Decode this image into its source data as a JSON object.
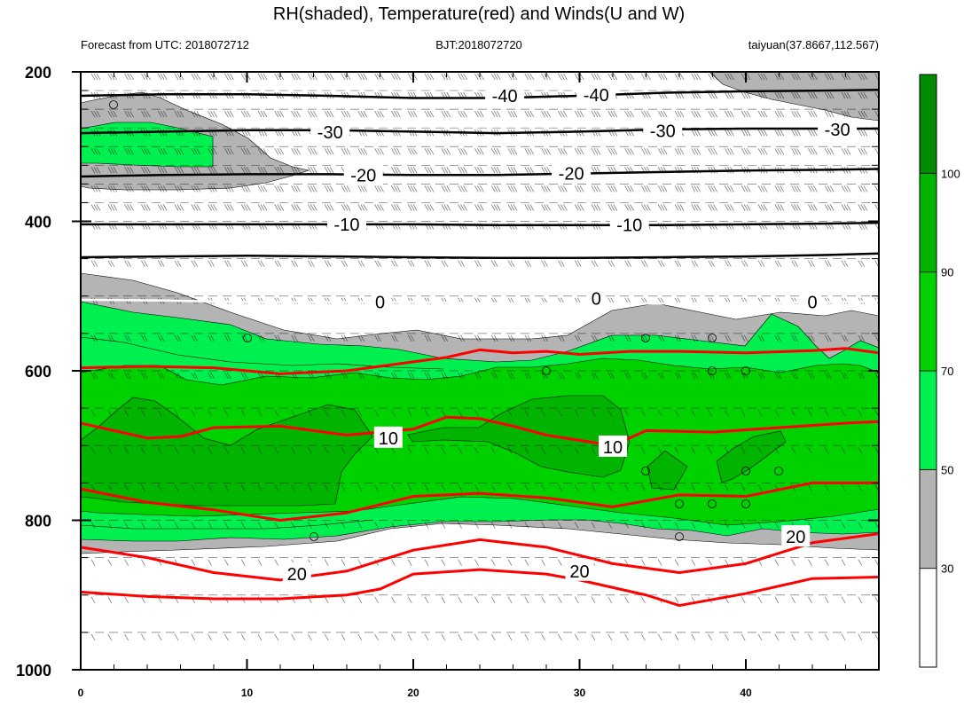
{
  "header": {
    "title": "RH(shaded), Temperature(red) and Winds(U and W)",
    "left": "Forecast from UTC: 2018072712",
    "center": "BJT:2018072720",
    "right": "taiyuan(37.8667,112.567)"
  },
  "chart_data": {
    "type": "time-pressure cross section (filled contour + line contours + wind barbs)",
    "title": "RH(shaded), Temperature(red) and Winds(U and W)",
    "x": {
      "range": [
        0,
        48
      ],
      "ticks": [
        0,
        10,
        20,
        30,
        40
      ],
      "tick_labels": [
        "0",
        "10",
        "20",
        "30",
        "40"
      ]
    },
    "y": {
      "range": [
        1000,
        200
      ],
      "ticks": [
        200,
        400,
        600,
        800,
        1000
      ],
      "tick_labels": [
        "200",
        "400",
        "600",
        "800",
        "1000"
      ],
      "levels": [
        200,
        225,
        250,
        275,
        300,
        325,
        350,
        375,
        400,
        450,
        500,
        550,
        600,
        650,
        700,
        750,
        800,
        850,
        900,
        950,
        1000
      ]
    },
    "colorbar": {
      "levels": [
        "30",
        "50",
        "70",
        "90",
        "100"
      ],
      "colors": [
        "#ffffff",
        "#b4b4b4",
        "#00f050",
        "#00d200",
        "#00b400",
        "#008c00"
      ]
    },
    "temperature_contours": {
      "color_warm": "#ff0000",
      "color_cold": "#000000",
      "labels": [
        "-40",
        "-30",
        "-20",
        "-10",
        "0",
        "10",
        "20"
      ],
      "lines": [
        {
          "label": "-40",
          "color": "black",
          "points": [
            [
              0,
              232
            ],
            [
              5,
              230
            ],
            [
              10,
              230
            ],
            [
              15,
              232
            ],
            [
              20,
              235
            ],
            [
              25,
              235
            ],
            [
              30,
              232
            ],
            [
              35,
              228
            ],
            [
              40,
              226
            ],
            [
              45,
              225
            ],
            [
              48,
              224
            ]
          ]
        },
        {
          "label": "-30",
          "color": "black",
          "points": [
            [
              0,
              282
            ],
            [
              5,
              280
            ],
            [
              10,
              278
            ],
            [
              15,
              278
            ],
            [
              20,
              280
            ],
            [
              25,
              282
            ],
            [
              30,
              280
            ],
            [
              35,
              277
            ],
            [
              40,
              276
            ],
            [
              45,
              276
            ],
            [
              48,
              276
            ]
          ]
        },
        {
          "label": "-20",
          "color": "black",
          "points": [
            [
              0,
              340
            ],
            [
              5,
              338
            ],
            [
              10,
              337
            ],
            [
              15,
              337
            ],
            [
              20,
              338
            ],
            [
              25,
              338
            ],
            [
              30,
              336
            ],
            [
              35,
              334
            ],
            [
              40,
              332
            ],
            [
              45,
              331
            ],
            [
              48,
              330
            ]
          ]
        },
        {
          "label": "-10",
          "color": "black",
          "points": [
            [
              0,
              404
            ],
            [
              5,
              404
            ],
            [
              10,
              404
            ],
            [
              15,
              404
            ],
            [
              20,
              404
            ],
            [
              25,
              405
            ],
            [
              30,
              405
            ],
            [
              35,
              405
            ],
            [
              40,
              404
            ],
            [
              45,
              403
            ],
            [
              48,
              402
            ]
          ]
        },
        {
          "label": "",
          "color": "black",
          "points": [
            [
              0,
              448
            ],
            [
              5,
              447
            ],
            [
              10,
              446
            ],
            [
              15,
              447
            ],
            [
              20,
              448
            ],
            [
              25,
              449
            ],
            [
              30,
              449
            ],
            [
              35,
              448
            ],
            [
              40,
              447
            ],
            [
              45,
              445
            ],
            [
              48,
              443
            ]
          ]
        },
        {
          "label": "0",
          "color": "white",
          "points": [
            [
              0,
              505
            ],
            [
              5,
              506
            ],
            [
              10,
              508
            ],
            [
              15,
              508
            ],
            [
              20,
              508
            ],
            [
              25,
              510
            ],
            [
              30,
              510
            ],
            [
              35,
              510
            ],
            [
              40,
              509
            ],
            [
              45,
              508
            ],
            [
              48,
              507
            ]
          ]
        },
        {
          "label": "",
          "color": "red",
          "points": [
            [
              0,
              596
            ],
            [
              4,
              594
            ],
            [
              8,
              596
            ],
            [
              12,
              604
            ],
            [
              16,
              600
            ],
            [
              20,
              588
            ],
            [
              22,
              582
            ],
            [
              24,
              572
            ],
            [
              26,
              576
            ],
            [
              28,
              574
            ],
            [
              30,
              578
            ],
            [
              33,
              574
            ],
            [
              36,
              574
            ],
            [
              40,
              576
            ],
            [
              44,
              573
            ],
            [
              46,
              570
            ],
            [
              48,
              576
            ]
          ]
        },
        {
          "label": "10",
          "color": "red",
          "points": [
            [
              0,
              670
            ],
            [
              2,
              680
            ],
            [
              4,
              690
            ],
            [
              6,
              688
            ],
            [
              8,
              676
            ],
            [
              12,
              674
            ],
            [
              16,
              686
            ],
            [
              20,
              678
            ],
            [
              22,
              662
            ],
            [
              24,
              664
            ],
            [
              26,
              674
            ],
            [
              28,
              686
            ],
            [
              32,
              700
            ],
            [
              34,
              680
            ],
            [
              38,
              682
            ],
            [
              42,
              676
            ],
            [
              46,
              670
            ],
            [
              48,
              668
            ]
          ]
        },
        {
          "label": "",
          "color": "red",
          "points": [
            [
              0,
              758
            ],
            [
              4,
              776
            ],
            [
              8,
              786
            ],
            [
              12,
              800
            ],
            [
              16,
              790
            ],
            [
              20,
              768
            ],
            [
              24,
              764
            ],
            [
              28,
              770
            ],
            [
              32,
              782
            ],
            [
              36,
              766
            ],
            [
              40,
              768
            ],
            [
              44,
              750
            ],
            [
              48,
              750
            ]
          ]
        },
        {
          "label": "20",
          "color": "red",
          "points": [
            [
              0,
              836
            ],
            [
              4,
              850
            ],
            [
              8,
              870
            ],
            [
              12,
              880
            ],
            [
              16,
              868
            ],
            [
              20,
              840
            ],
            [
              24,
              826
            ],
            [
              28,
              836
            ],
            [
              32,
              858
            ],
            [
              36,
              870
            ],
            [
              40,
              858
            ],
            [
              44,
              830
            ],
            [
              48,
              818
            ]
          ]
        },
        {
          "label": "",
          "color": "red",
          "points": [
            [
              0,
              896
            ],
            [
              4,
              902
            ],
            [
              8,
              905
            ],
            [
              12,
              905
            ],
            [
              16,
              900
            ],
            [
              18,
              892
            ],
            [
              20,
              872
            ],
            [
              24,
              866
            ],
            [
              28,
              872
            ],
            [
              30,
              880
            ],
            [
              34,
              900
            ],
            [
              36,
              914
            ],
            [
              40,
              898
            ],
            [
              44,
              878
            ],
            [
              48,
              876
            ]
          ]
        }
      ]
    }
  }
}
